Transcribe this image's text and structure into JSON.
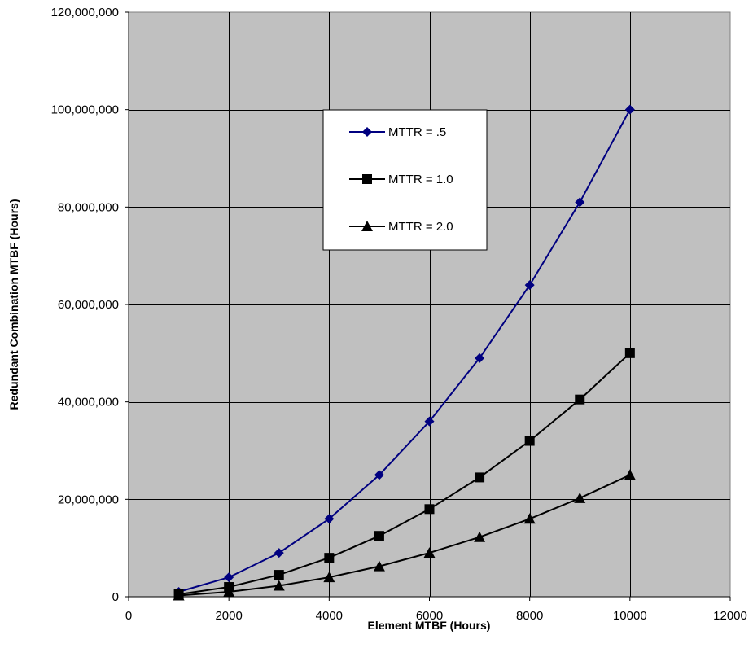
{
  "chart_data": {
    "type": "line",
    "title": "",
    "xlabel": "Element MTBF (Hours)",
    "ylabel": "Redundant Combination MTBF (Hours)",
    "xlim": [
      0,
      12000
    ],
    "ylim": [
      0,
      120000000
    ],
    "x_ticks": [
      "0",
      "2000",
      "4000",
      "6000",
      "8000",
      "10000",
      "12000"
    ],
    "y_ticks": [
      "0",
      "20,000,000",
      "40,000,000",
      "60,000,000",
      "80,000,000",
      "100,000,000",
      "120,000,000"
    ],
    "x_tick_values": [
      0,
      2000,
      4000,
      6000,
      8000,
      10000,
      12000
    ],
    "y_tick_values": [
      0,
      20000000,
      40000000,
      60000000,
      80000000,
      100000000,
      120000000
    ],
    "grid": true,
    "plot_background": "#c0c0c0",
    "legend_position": "upper-center",
    "x": [
      1000,
      2000,
      3000,
      4000,
      5000,
      6000,
      7000,
      8000,
      9000,
      10000
    ],
    "series": [
      {
        "name": "MTTR = .5",
        "color": "#000080",
        "marker": "diamond",
        "values": [
          1000000,
          4000000,
          9000000,
          16000000,
          25000000,
          36000000,
          49000000,
          64000000,
          81000000,
          100000000
        ]
      },
      {
        "name": "MTTR = 1.0",
        "color": "#000000",
        "marker": "square",
        "values": [
          500000,
          2000000,
          4500000,
          8000000,
          12500000,
          18000000,
          24500000,
          32000000,
          40500000,
          50000000
        ]
      },
      {
        "name": "MTTR = 2.0",
        "color": "#000000",
        "marker": "triangle",
        "values": [
          250000,
          1000000,
          2250000,
          4000000,
          6250000,
          9000000,
          12250000,
          16000000,
          20250000,
          25000000
        ]
      }
    ]
  }
}
